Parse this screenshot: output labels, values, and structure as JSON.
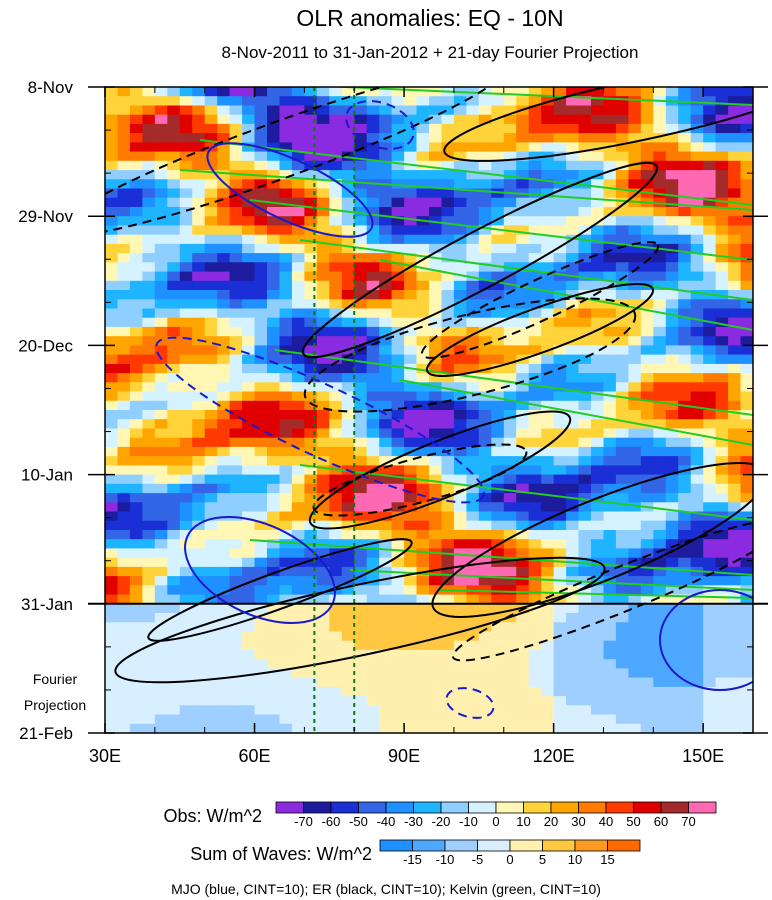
{
  "chart_data": {
    "type": "heatmap",
    "title": "OLR anomalies: EQ - 10N",
    "subtitle": "8-Nov-2011 to 31-Jan-2012 + 21-day Fourier Projection",
    "x_ticks": [
      {
        "label": "30E",
        "lon": 30
      },
      {
        "label": "60E",
        "lon": 60
      },
      {
        "label": "90E",
        "lon": 90
      },
      {
        "label": "120E",
        "lon": 120
      },
      {
        "label": "150E",
        "lon": 150
      }
    ],
    "xlim": [
      30,
      160
    ],
    "y_ticks": [
      {
        "label": "8-Nov",
        "day": 0
      },
      {
        "label": "29-Nov",
        "day": 21
      },
      {
        "label": "20-Dec",
        "day": 42
      },
      {
        "label": "10-Jan",
        "day": 63
      },
      {
        "label": "31-Jan",
        "day": 84
      },
      {
        "label": "21-Feb",
        "day": 105
      }
    ],
    "ylim_days": [
      0,
      105
    ],
    "observation_end_day": 84,
    "projection_label_line1": "Fourier",
    "projection_label_line2": "Projection",
    "reference_lons": [
      72,
      80
    ],
    "obs_colorbar": {
      "label": "Obs: W/m^2",
      "levels": [
        "-70",
        "-60",
        "-50",
        "-40",
        "-30",
        "-20",
        "-10",
        "0",
        "10",
        "20",
        "30",
        "40",
        "50",
        "60",
        "70"
      ],
      "colors": [
        "#8a2be2",
        "#1c1c9c",
        "#1a2fd6",
        "#3366e6",
        "#1e90ff",
        "#1eb4ff",
        "#8fcfff",
        "#d4f2ff",
        "#fff7b3",
        "#ffd43a",
        "#ffa500",
        "#ff7a00",
        "#ff3a00",
        "#e00000",
        "#a52a2a",
        "#ff69b4"
      ]
    },
    "wave_colorbar": {
      "label": "Sum of Waves: W/m^2",
      "levels": [
        "-15",
        "-10",
        "-5",
        "0",
        "5",
        "10",
        "15"
      ],
      "colors": [
        "#1e90ff",
        "#4fa8ff",
        "#9fcfff",
        "#d8efff",
        "#fff0b0",
        "#ffc840",
        "#ff9a20",
        "#ff6a00"
      ]
    },
    "caption": "MJO (blue, CINT=10); ER (black, CINT=10); Kelvin (green, CINT=10)",
    "series": [
      {
        "name": "MJO",
        "color": "#1a1acc",
        "cint": 10
      },
      {
        "name": "ER",
        "color": "#000000",
        "cint": 10
      },
      {
        "name": "Kelvin",
        "color": "#22cc22",
        "cint": 10
      }
    ]
  }
}
